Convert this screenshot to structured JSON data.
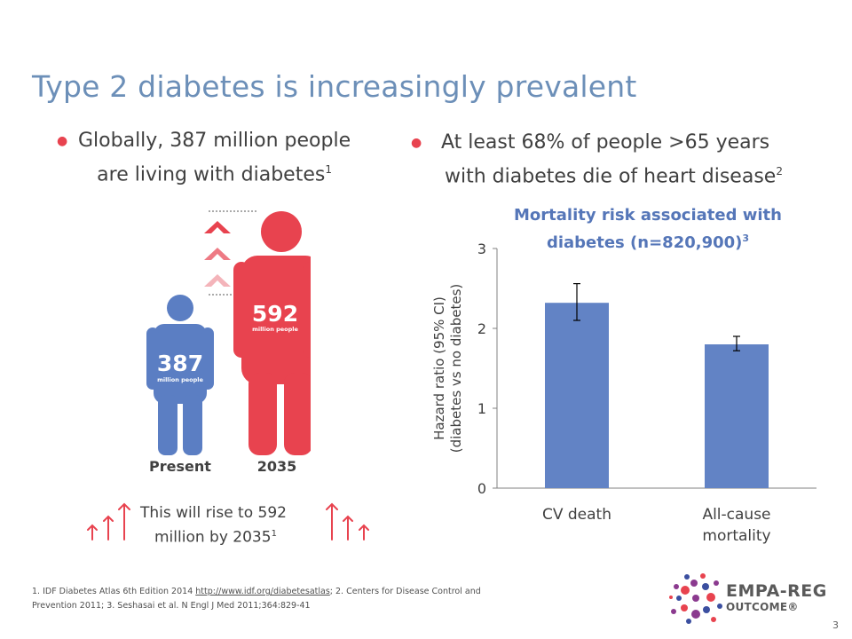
{
  "page": {
    "title": "Type 2 diabetes is increasingly prevalent",
    "page_number": "3"
  },
  "left": {
    "bullet_text_line1": "Globally, 387 million people",
    "bullet_text_line2": "are living with diabetes",
    "bullet_ref": "1",
    "present_number": "387",
    "present_sub": "million people",
    "present_label": "Present",
    "future_number": "592",
    "future_sub": "million people",
    "future_label": "2035",
    "rise_line1": "This will rise to 592",
    "rise_line2": "million by 2035",
    "rise_ref": "1",
    "colors": {
      "present": "#5b7ec3",
      "future": "#e8434f",
      "arrow": "#e8434f"
    }
  },
  "right": {
    "bullet_text_line1": "At least 68% of people >65 years",
    "bullet_text_line2": "with diabetes die of heart disease",
    "bullet_ref": "2",
    "chart_title_line1": "Mortality risk associated with",
    "chart_title_line2": "diabetes (n=820,900)",
    "chart_title_ref": "3"
  },
  "chart_data": {
    "type": "bar",
    "categories": [
      "CV death",
      "All-cause mortality"
    ],
    "category_lines": [
      [
        "CV death"
      ],
      [
        "All-cause",
        "mortality"
      ]
    ],
    "values": [
      2.32,
      1.8
    ],
    "error_low": [
      2.1,
      1.72
    ],
    "error_high": [
      2.56,
      1.9
    ],
    "ylabel_line1": "Hazard ratio (95% CI)",
    "ylabel_line2": "(diabetes vs no diabetes)",
    "ylim": [
      0,
      3
    ],
    "yticks": [
      "0",
      "1",
      "2",
      "3"
    ],
    "grid": false,
    "bar_color": "#6283c5"
  },
  "footnote": {
    "line1_a": "1. IDF Diabetes Atlas 6th Edition 2014 ",
    "line1_link": "http://www.idf.org/diabetesatlas",
    "line1_b": "; 2. Centers for Disease Control and",
    "line2": "Prevention 2011; 3. Seshasai et al. N Engl J Med 2011;364:829-41"
  },
  "logo": {
    "line1": "EMPA-REG",
    "line2": "OUTCOME®"
  }
}
